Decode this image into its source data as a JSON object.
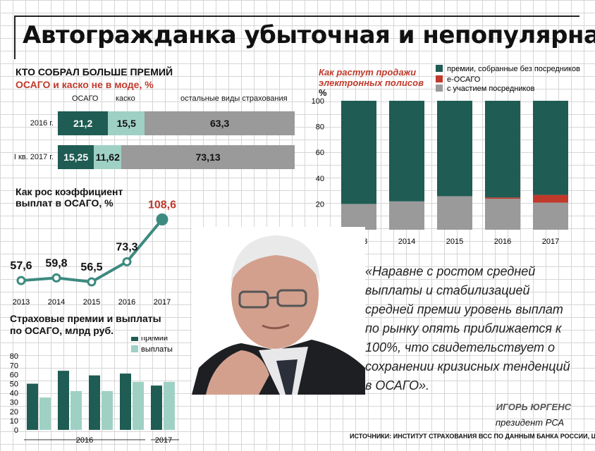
{
  "title": "Автогражданка убыточная и непопулярная",
  "premiums_section": {
    "title_line1": "КТО СОБРАЛ БОЛЬШЕ ПРЕМИЙ",
    "title_line2": "ОСАГО и каско не в моде, %",
    "col_osago": "ОСАГО",
    "col_kasko": "каско",
    "col_other": "остальные виды страхования"
  },
  "electronic_section": {
    "title_line1": "Как растут продажи",
    "title_line2": "электронных полисов",
    "y_unit": "%"
  },
  "coefficient_section": {
    "title_line1": "Как рос коэффициент",
    "title_line2": "выплат в ОСАГО, %"
  },
  "payouts_section": {
    "title_line1": "Страховые премии и выплаты",
    "title_line2": "по ОСАГО, млрд руб."
  },
  "quote": {
    "text": "«Наравне с ростом средней выплаты и стабилизацией средней премии уровень выплат по рынку опять приближается к 100%, что свидетельствует о сохранении кризисных тенденций в ОСАГО».",
    "author": "ИГОРЬ ЮРГЕНС",
    "position": "президент РСА"
  },
  "source": "ИСТОЧНИКИ: ИНСТИТУТ СТРАХОВАНИЯ ВСС ПО ДАННЫМ БАНКА РОССИИ, ЦБ РФ",
  "photo": {
    "icon": "portrait-photo"
  },
  "colors": {
    "dark_green": "#1f5c53",
    "light_teal": "#9fd0c4",
    "gray": "#9a9a9a",
    "red": "#c0392b",
    "line_teal": "#3d8a80"
  },
  "chart_data": [
    {
      "type": "bar",
      "stacked": true,
      "orientation": "horizontal",
      "categories": [
        "2016 г.",
        "I кв. 2017 г."
      ],
      "series": [
        {
          "name": "ОСАГО",
          "values": [
            21.2,
            15.25
          ],
          "labels": [
            "21,2",
            "15,25"
          ]
        },
        {
          "name": "каско",
          "values": [
            15.5,
            11.62
          ],
          "labels": [
            "15,5",
            "11,62"
          ]
        },
        {
          "name": "остальные виды страхования",
          "values": [
            63.3,
            73.13
          ],
          "labels": [
            "63,3",
            "73,13"
          ]
        }
      ]
    },
    {
      "type": "bar",
      "stacked": true,
      "categories": [
        "2013",
        "2014",
        "2015",
        "2016",
        "2017"
      ],
      "series": [
        {
          "name": "с участием посредников",
          "values": [
            20,
            22,
            26,
            24,
            21
          ]
        },
        {
          "name": "е-ОСАГО",
          "values": [
            0,
            0,
            0,
            1,
            6
          ]
        },
        {
          "name": "премии, собранные без посредников",
          "values": [
            80,
            78,
            74,
            75,
            73
          ]
        }
      ],
      "ylim": [
        0,
        100
      ],
      "yticks": [
        "0",
        "20",
        "40",
        "60",
        "80",
        "100"
      ],
      "legend": "top-right"
    },
    {
      "type": "line",
      "categories": [
        "2013",
        "2014",
        "2015",
        "2016",
        "2017"
      ],
      "values": [
        57.6,
        59.8,
        56.5,
        73.3,
        108.6
      ],
      "labels": [
        "57,6",
        "59,8",
        "56,5",
        "73,3",
        "108,6"
      ]
    },
    {
      "type": "bar",
      "categories": [
        "2016",
        "2016",
        "2016",
        "2016",
        "2017"
      ],
      "group_labels": [
        "2016",
        "2017"
      ],
      "series": [
        {
          "name": "премии",
          "values": [
            50,
            64,
            59,
            61,
            48
          ]
        },
        {
          "name": "выплаты",
          "values": [
            35,
            42,
            42,
            52,
            52
          ]
        }
      ],
      "ylim": [
        0,
        80
      ],
      "yticks": [
        "0",
        "10",
        "20",
        "30",
        "40",
        "50",
        "60",
        "70",
        "80"
      ],
      "legend": "top-right"
    }
  ]
}
